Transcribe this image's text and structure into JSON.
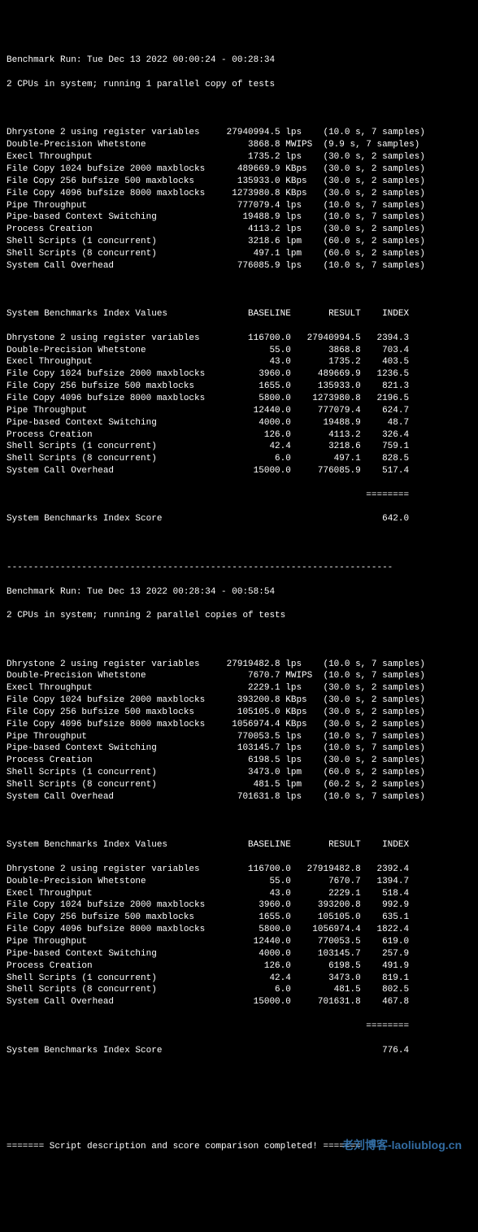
{
  "run1": {
    "header1": "Benchmark Run: Tue Dec 13 2022 00:00:24 - 00:28:34",
    "header2": "2 CPUs in system; running 1 parallel copy of tests",
    "rows": [
      {
        "name": "Dhrystone 2 using register variables",
        "val": "27940994.5",
        "unit": "lps",
        "timing": "(10.0 s, 7 samples)"
      },
      {
        "name": "Double-Precision Whetstone",
        "val": "3868.8",
        "unit": "MWIPS",
        "timing": "(9.9 s, 7 samples)"
      },
      {
        "name": "Execl Throughput",
        "val": "1735.2",
        "unit": "lps",
        "timing": "(30.0 s, 2 samples)"
      },
      {
        "name": "File Copy 1024 bufsize 2000 maxblocks",
        "val": "489669.9",
        "unit": "KBps",
        "timing": "(30.0 s, 2 samples)"
      },
      {
        "name": "File Copy 256 bufsize 500 maxblocks",
        "val": "135933.0",
        "unit": "KBps",
        "timing": "(30.0 s, 2 samples)"
      },
      {
        "name": "File Copy 4096 bufsize 8000 maxblocks",
        "val": "1273980.8",
        "unit": "KBps",
        "timing": "(30.0 s, 2 samples)"
      },
      {
        "name": "Pipe Throughput",
        "val": "777079.4",
        "unit": "lps",
        "timing": "(10.0 s, 7 samples)"
      },
      {
        "name": "Pipe-based Context Switching",
        "val": "19488.9",
        "unit": "lps",
        "timing": "(10.0 s, 7 samples)"
      },
      {
        "name": "Process Creation",
        "val": "4113.2",
        "unit": "lps",
        "timing": "(30.0 s, 2 samples)"
      },
      {
        "name": "Shell Scripts (1 concurrent)",
        "val": "3218.6",
        "unit": "lpm",
        "timing": "(60.0 s, 2 samples)"
      },
      {
        "name": "Shell Scripts (8 concurrent)",
        "val": "497.1",
        "unit": "lpm",
        "timing": "(60.0 s, 2 samples)"
      },
      {
        "name": "System Call Overhead",
        "val": "776085.9",
        "unit": "lps",
        "timing": "(10.0 s, 7 samples)"
      }
    ],
    "index_header": "System Benchmarks Index Values               BASELINE       RESULT    INDEX",
    "index_rows": [
      {
        "name": "Dhrystone 2 using register variables",
        "base": "116700.0",
        "res": "27940994.5",
        "idx": "2394.3"
      },
      {
        "name": "Double-Precision Whetstone",
        "base": "55.0",
        "res": "3868.8",
        "idx": "703.4"
      },
      {
        "name": "Execl Throughput",
        "base": "43.0",
        "res": "1735.2",
        "idx": "403.5"
      },
      {
        "name": "File Copy 1024 bufsize 2000 maxblocks",
        "base": "3960.0",
        "res": "489669.9",
        "idx": "1236.5"
      },
      {
        "name": "File Copy 256 bufsize 500 maxblocks",
        "base": "1655.0",
        "res": "135933.0",
        "idx": "821.3"
      },
      {
        "name": "File Copy 4096 bufsize 8000 maxblocks",
        "base": "5800.0",
        "res": "1273980.8",
        "idx": "2196.5"
      },
      {
        "name": "Pipe Throughput",
        "base": "12440.0",
        "res": "777079.4",
        "idx": "624.7"
      },
      {
        "name": "Pipe-based Context Switching",
        "base": "4000.0",
        "res": "19488.9",
        "idx": "48.7"
      },
      {
        "name": "Process Creation",
        "base": "126.0",
        "res": "4113.2",
        "idx": "326.4"
      },
      {
        "name": "Shell Scripts (1 concurrent)",
        "base": "42.4",
        "res": "3218.6",
        "idx": "759.1"
      },
      {
        "name": "Shell Scripts (8 concurrent)",
        "base": "6.0",
        "res": "497.1",
        "idx": "828.5"
      },
      {
        "name": "System Call Overhead",
        "base": "15000.0",
        "res": "776085.9",
        "idx": "517.4"
      }
    ],
    "sep": "                                                                   ========",
    "score_label": "System Benchmarks Index Score",
    "score": "642.0"
  },
  "divider": "------------------------------------------------------------------------",
  "run2": {
    "header1": "Benchmark Run: Tue Dec 13 2022 00:28:34 - 00:58:54",
    "header2": "2 CPUs in system; running 2 parallel copies of tests",
    "rows": [
      {
        "name": "Dhrystone 2 using register variables",
        "val": "27919482.8",
        "unit": "lps",
        "timing": "(10.0 s, 7 samples)"
      },
      {
        "name": "Double-Precision Whetstone",
        "val": "7670.7",
        "unit": "MWIPS",
        "timing": "(10.0 s, 7 samples)"
      },
      {
        "name": "Execl Throughput",
        "val": "2229.1",
        "unit": "lps",
        "timing": "(30.0 s, 2 samples)"
      },
      {
        "name": "File Copy 1024 bufsize 2000 maxblocks",
        "val": "393200.8",
        "unit": "KBps",
        "timing": "(30.0 s, 2 samples)"
      },
      {
        "name": "File Copy 256 bufsize 500 maxblocks",
        "val": "105105.0",
        "unit": "KBps",
        "timing": "(30.0 s, 2 samples)"
      },
      {
        "name": "File Copy 4096 bufsize 8000 maxblocks",
        "val": "1056974.4",
        "unit": "KBps",
        "timing": "(30.0 s, 2 samples)"
      },
      {
        "name": "Pipe Throughput",
        "val": "770053.5",
        "unit": "lps",
        "timing": "(10.0 s, 7 samples)"
      },
      {
        "name": "Pipe-based Context Switching",
        "val": "103145.7",
        "unit": "lps",
        "timing": "(10.0 s, 7 samples)"
      },
      {
        "name": "Process Creation",
        "val": "6198.5",
        "unit": "lps",
        "timing": "(30.0 s, 2 samples)"
      },
      {
        "name": "Shell Scripts (1 concurrent)",
        "val": "3473.0",
        "unit": "lpm",
        "timing": "(60.0 s, 2 samples)"
      },
      {
        "name": "Shell Scripts (8 concurrent)",
        "val": "481.5",
        "unit": "lpm",
        "timing": "(60.2 s, 2 samples)"
      },
      {
        "name": "System Call Overhead",
        "val": "701631.8",
        "unit": "lps",
        "timing": "(10.0 s, 7 samples)"
      }
    ],
    "index_header": "System Benchmarks Index Values               BASELINE       RESULT    INDEX",
    "index_rows": [
      {
        "name": "Dhrystone 2 using register variables",
        "base": "116700.0",
        "res": "27919482.8",
        "idx": "2392.4"
      },
      {
        "name": "Double-Precision Whetstone",
        "base": "55.0",
        "res": "7670.7",
        "idx": "1394.7"
      },
      {
        "name": "Execl Throughput",
        "base": "43.0",
        "res": "2229.1",
        "idx": "518.4"
      },
      {
        "name": "File Copy 1024 bufsize 2000 maxblocks",
        "base": "3960.0",
        "res": "393200.8",
        "idx": "992.9"
      },
      {
        "name": "File Copy 256 bufsize 500 maxblocks",
        "base": "1655.0",
        "res": "105105.0",
        "idx": "635.1"
      },
      {
        "name": "File Copy 4096 bufsize 8000 maxblocks",
        "base": "5800.0",
        "res": "1056974.4",
        "idx": "1822.4"
      },
      {
        "name": "Pipe Throughput",
        "base": "12440.0",
        "res": "770053.5",
        "idx": "619.0"
      },
      {
        "name": "Pipe-based Context Switching",
        "base": "4000.0",
        "res": "103145.7",
        "idx": "257.9"
      },
      {
        "name": "Process Creation",
        "base": "126.0",
        "res": "6198.5",
        "idx": "491.9"
      },
      {
        "name": "Shell Scripts (1 concurrent)",
        "base": "42.4",
        "res": "3473.0",
        "idx": "819.1"
      },
      {
        "name": "Shell Scripts (8 concurrent)",
        "base": "6.0",
        "res": "481.5",
        "idx": "802.5"
      },
      {
        "name": "System Call Overhead",
        "base": "15000.0",
        "res": "701631.8",
        "idx": "467.8"
      }
    ],
    "sep": "                                                                   ========",
    "score_label": "System Benchmarks Index Score",
    "score": "776.4"
  },
  "footer": "======= Script description and score comparison completed! =======",
  "watermark": "老刘博客-laoliublog.cn"
}
